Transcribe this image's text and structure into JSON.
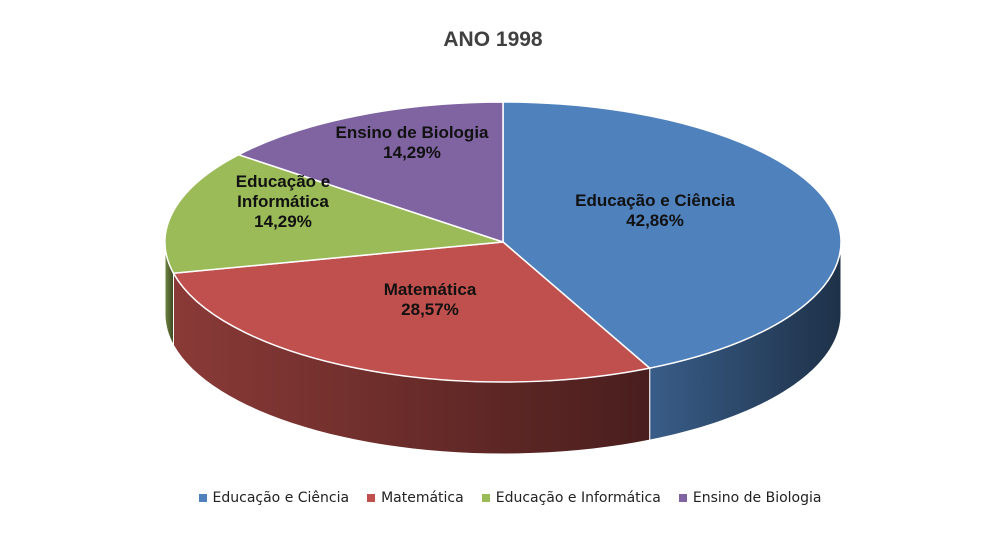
{
  "chart_data": {
    "type": "pie",
    "title": "ANO 1998",
    "categories": [
      "Educação e Ciência",
      "Matemática",
      "Educação e Informática",
      "Ensino de Biologia"
    ],
    "values": [
      42.86,
      28.57,
      14.29,
      14.29
    ],
    "value_labels": [
      "42,86%",
      "28,57%",
      "14,29%",
      "14,29%"
    ],
    "colors": [
      "#4f81bd",
      "#c0504d",
      "#9bbb59",
      "#8064a2"
    ],
    "legend": "bottom"
  }
}
